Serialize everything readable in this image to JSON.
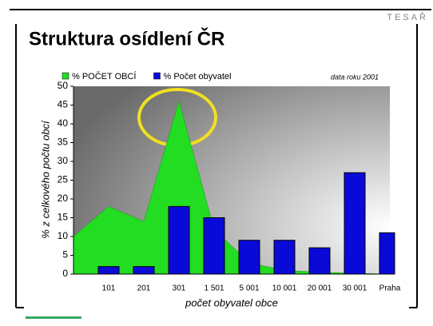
{
  "chart_data": {
    "type": "bar",
    "brand": "TESAŘ",
    "title": "Struktura osídlení ČR",
    "annotation": "data roku 2001",
    "y_label": "% z celkového počtu obcí",
    "x_label": "počet obyvatel obce",
    "categories": [
      null,
      "101",
      "201",
      "301",
      "1 501",
      "5 001",
      "10 001",
      "20 001",
      "30 001",
      "Praha"
    ],
    "series": [
      {
        "name": "% POČET OBCÍ",
        "kind": "area",
        "color": "#22dd22",
        "values": [
          10,
          18,
          14,
          46,
          12,
          3,
          1,
          0.5,
          0.2,
          0
        ]
      },
      {
        "name": "% Počet obyvatel",
        "kind": "bar",
        "color": "#0a0ad8",
        "values": [
          0,
          2,
          2,
          18,
          15,
          9,
          9,
          7,
          27,
          11
        ]
      }
    ],
    "ylim": [
      0,
      50
    ],
    "yticks": [
      0,
      5,
      10,
      15,
      20,
      25,
      30,
      35,
      40,
      45,
      50
    ]
  }
}
